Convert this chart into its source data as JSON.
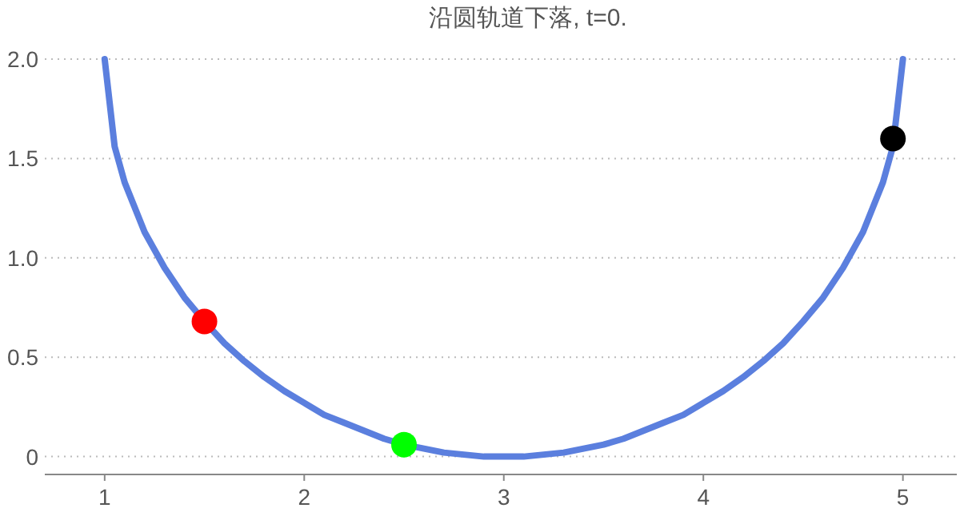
{
  "chart_data": {
    "type": "line",
    "title": "沿圆轨道下落, t=0.",
    "series": [
      {
        "color": "#5b7fde",
        "x": [
          1.0,
          1.05,
          1.1,
          1.2,
          1.3,
          1.4,
          1.5,
          1.6,
          1.7,
          1.8,
          1.9,
          2.0,
          2.1,
          2.2,
          2.3,
          2.4,
          2.5,
          2.6,
          2.7,
          2.8,
          2.9,
          3.0,
          3.1,
          3.2,
          3.3,
          3.4,
          3.5,
          3.6,
          3.7,
          3.8,
          3.9,
          4.0,
          4.1,
          4.2,
          4.3,
          4.4,
          4.5,
          4.6,
          4.7,
          4.8,
          4.9,
          4.95,
          5.0
        ],
        "values": [
          2.0,
          1.56,
          1.38,
          1.13,
          0.95,
          0.8,
          0.68,
          0.57,
          0.48,
          0.4,
          0.33,
          0.27,
          0.21,
          0.17,
          0.13,
          0.09,
          0.06,
          0.04,
          0.02,
          0.01,
          0.0,
          0.0,
          0.0,
          0.01,
          0.02,
          0.04,
          0.06,
          0.09,
          0.13,
          0.17,
          0.21,
          0.27,
          0.33,
          0.4,
          0.48,
          0.57,
          0.68,
          0.8,
          0.95,
          1.13,
          1.38,
          1.56,
          2.0
        ]
      },
      {
        "type": "scatter",
        "color": "#ff0000",
        "x": [
          1.5
        ],
        "values": [
          0.68
        ]
      },
      {
        "type": "scatter",
        "color": "#00ff00",
        "x": [
          2.5
        ],
        "values": [
          0.06
        ]
      },
      {
        "type": "scatter",
        "color": "#000000",
        "x": [
          4.95
        ],
        "values": [
          1.6
        ]
      }
    ],
    "xlim": [
      0.7,
      5.27
    ],
    "xticks": [
      1,
      2,
      3,
      4,
      5
    ],
    "ylim": [
      -0.09,
      2.0
    ],
    "yticks": [
      0,
      {
        "value": 0.5,
        "label": "0.5"
      },
      {
        "value": 1,
        "label": "1.0"
      },
      {
        "value": 1.5,
        "label": "1.5"
      },
      {
        "value": 2,
        "label": "2.0"
      }
    ],
    "grid": "y",
    "line_style": "solid"
  }
}
